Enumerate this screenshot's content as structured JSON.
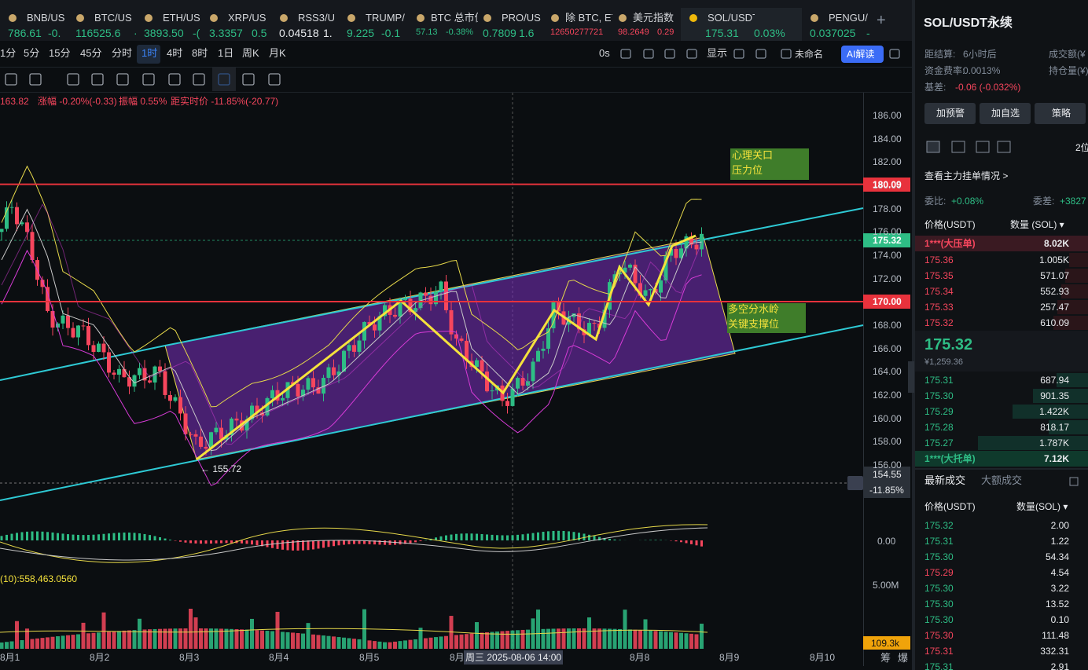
{
  "tabs": [
    {
      "symbol": "BNB/US",
      "price": "786.61",
      "change": "-0.",
      "color": "#2ebd85"
    },
    {
      "symbol": "BTC/US",
      "price": "116525.6",
      "change": "·",
      "color": "#2ebd85"
    },
    {
      "symbol": "ETH/US",
      "price": "3893.50",
      "change": "-(",
      "color": "#2ebd85"
    },
    {
      "symbol": "XRP/US",
      "price": "3.3357",
      "change": "0.5",
      "color": "#2ebd85"
    },
    {
      "symbol": "RSS3/U",
      "price": "0.04518",
      "change": "1.",
      "color": "#eaecef"
    },
    {
      "symbol": "TRUMP/",
      "price": "9.225",
      "change": "-0.1",
      "color": "#2ebd85"
    },
    {
      "symbol": "BTC 总市值占",
      "price": "57.13",
      "change": "-0.38%",
      "color": "#2ebd85"
    },
    {
      "symbol": "PRO/US",
      "price": "0.7809",
      "change": "1.6",
      "color": "#2ebd85"
    },
    {
      "symbol": "除 BTC, ETH",
      "price": "12650277721",
      "change": "",
      "color": "#f6465d"
    },
    {
      "symbol": "美元指数",
      "price": "98.2649",
      "change": "0.29",
      "color": "#f6465d"
    },
    {
      "symbol": "SOL/USDT永续",
      "price": "175.31",
      "change": "0.03%",
      "color": "#2ebd85"
    },
    {
      "symbol": "PENGU/",
      "price": "0.037025",
      "change": "-",
      "color": "#2ebd85"
    }
  ],
  "add_tab": "+",
  "timeframes": [
    "1分",
    "5分",
    "15分",
    "45分",
    "分时",
    "1时",
    "4时",
    "8时",
    "1日",
    "周K",
    "月K"
  ],
  "toolbar": {
    "refresh": "0s",
    "display": "显示",
    "layout_name": "未命名",
    "ai": "AI解读"
  },
  "info": {
    "value": "163.82",
    "change": "涨幅 -0.20%(-0.33)",
    "amplitude": "振幅 0.55%",
    "distance": "距实时价 -11.85%(-20.77)"
  },
  "price_axis": [
    "186.00",
    "184.00",
    "182.00",
    "180.00",
    "178.00",
    "176.00",
    "174.00",
    "172.00",
    "170.00",
    "168.00",
    "166.00",
    "164.00",
    "162.00",
    "160.00",
    "158.00",
    "156.00"
  ],
  "price_tags": {
    "resistance": "180.09",
    "current": "175.32",
    "support": "170.00",
    "cursor": "154.55",
    "cursor_pct": "-11.85%"
  },
  "annotations": {
    "resistance": [
      "心理关口",
      "压力位"
    ],
    "support": [
      "多空分水岭",
      "关键支撑位"
    ],
    "low": "← 155.72"
  },
  "macd": {
    "zero": "0.00"
  },
  "volume": {
    "label": "(10):558,463.0560",
    "axis": "5.00M",
    "current": "109.3k"
  },
  "time_axis": [
    "8月1",
    "8月2",
    "8月3",
    "8月4",
    "8月5",
    "8月",
    "8月8",
    "8月9",
    "8月10"
  ],
  "crosshair_time": "周三 2025-08-06 14:00",
  "corner": [
    "筹",
    "爆"
  ],
  "panel": {
    "title": "SOL/USDT永续",
    "stats": [
      [
        "距结算:",
        "6小时后"
      ],
      [
        "资金费率:",
        "0.0013%"
      ],
      [
        "基差:",
        "-0.06 (-0.032%)"
      ]
    ],
    "stats_right": [
      "成交额(¥",
      "持仓量(¥)"
    ],
    "buttons": [
      "加预警",
      "加自选",
      "策略"
    ],
    "precision": "2位",
    "link": "查看主力挂单情况 >",
    "ratio": {
      "label": "委比:",
      "value": "+0.08%"
    },
    "diff": {
      "label": "委差:",
      "value": "+3827"
    },
    "book_headers": [
      "价格(USDT)",
      "数量 (SOL) ▾"
    ],
    "big_ask": {
      "price": "1***(大压单)",
      "qty": "8.02K"
    },
    "asks": [
      [
        "175.36",
        "1.005K"
      ],
      [
        "175.35",
        "571.07"
      ],
      [
        "175.34",
        "552.93"
      ],
      [
        "175.33",
        "257.47"
      ],
      [
        "175.32",
        "610.09"
      ]
    ],
    "mid": {
      "price": "175.32",
      "cny": "¥1,259.36"
    },
    "bids": [
      [
        "175.31",
        "687.94"
      ],
      [
        "175.30",
        "901.35"
      ],
      [
        "175.29",
        "1.422K"
      ],
      [
        "175.28",
        "818.17"
      ],
      [
        "175.27",
        "1.787K"
      ]
    ],
    "big_bid": {
      "price": "1***(大托单)",
      "qty": "7.12K"
    },
    "trade_tabs": [
      "最新成交",
      "大额成交"
    ],
    "trade_headers": [
      "价格(USDT)",
      "数量(SOL) ▾"
    ],
    "trades": [
      {
        "price": "175.32",
        "qty": "2.00",
        "color": "#2ebd85"
      },
      {
        "price": "175.31",
        "qty": "1.22",
        "color": "#2ebd85"
      },
      {
        "price": "175.30",
        "qty": "54.34",
        "color": "#2ebd85"
      },
      {
        "price": "175.29",
        "qty": "4.54",
        "color": "#f6465d"
      },
      {
        "price": "175.30",
        "qty": "3.22",
        "color": "#2ebd85"
      },
      {
        "price": "175.30",
        "qty": "13.52",
        "color": "#2ebd85"
      },
      {
        "price": "175.30",
        "qty": "0.10",
        "color": "#2ebd85"
      },
      {
        "price": "175.30",
        "qty": "111.48",
        "color": "#f6465d"
      },
      {
        "price": "175.31",
        "qty": "332.31",
        "color": "#f6465d"
      },
      {
        "price": "175.31",
        "qty": "2.91",
        "color": "#2ebd85"
      }
    ]
  }
}
